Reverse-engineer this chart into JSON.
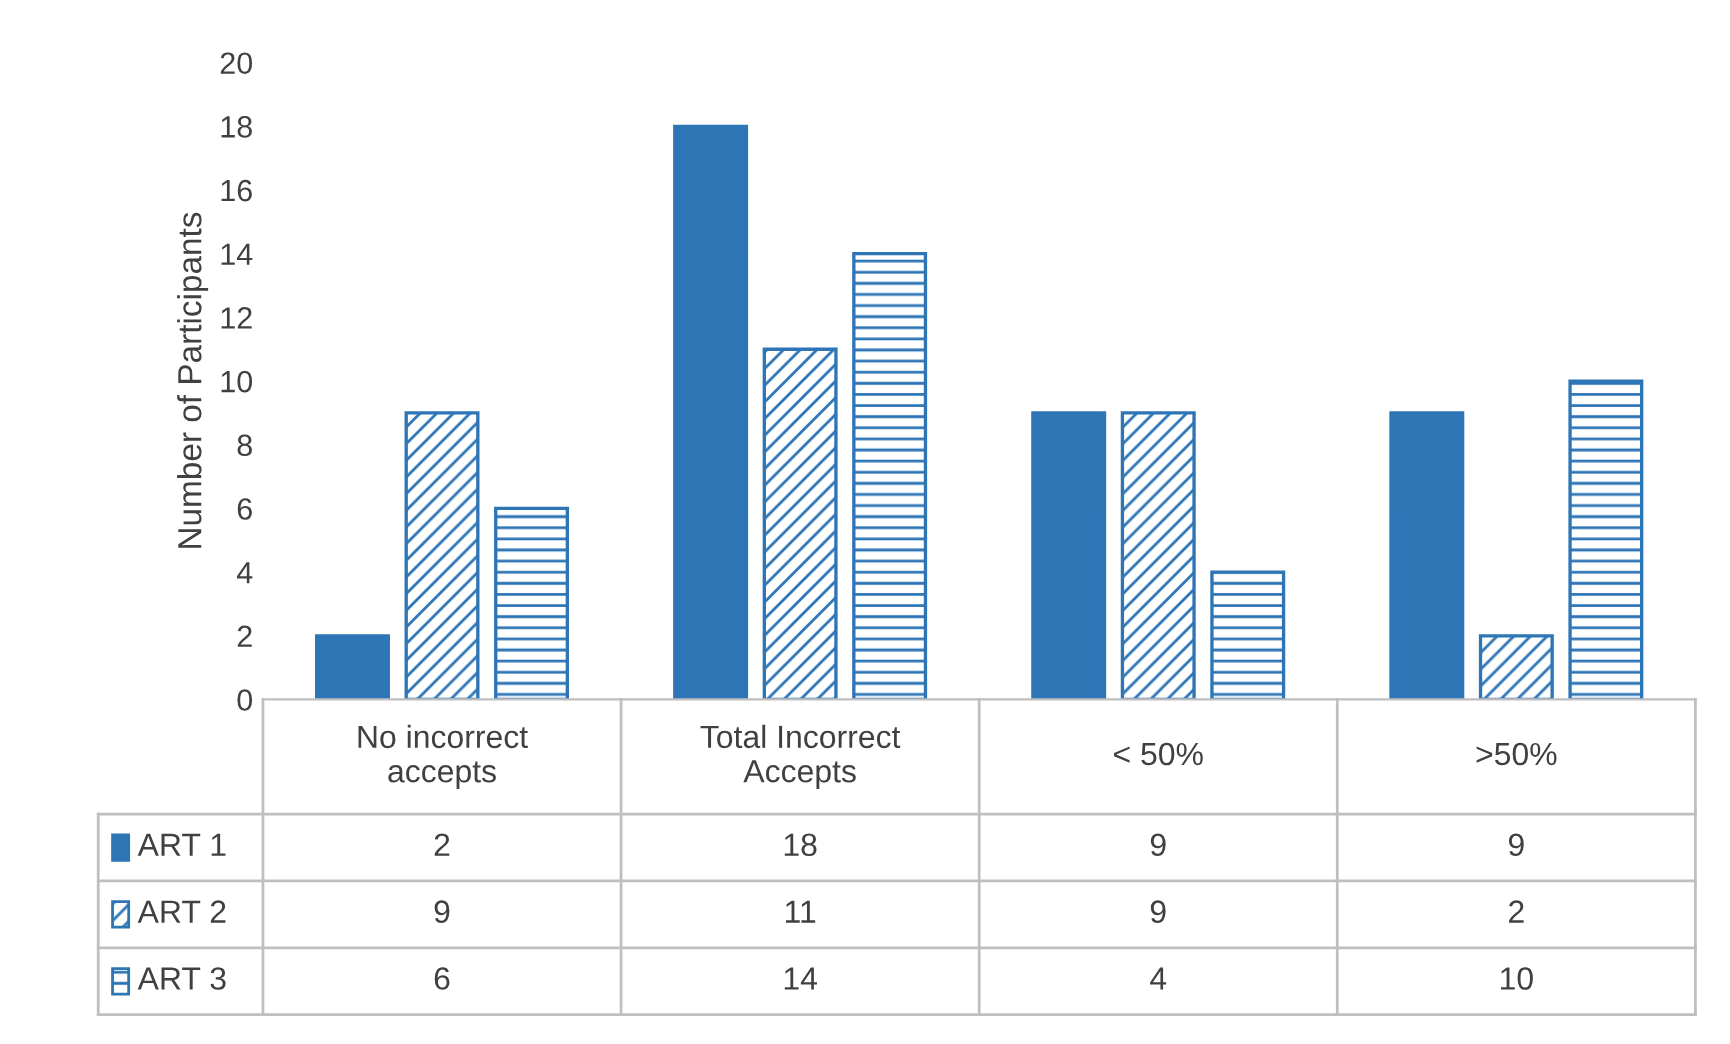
{
  "chart_data": {
    "type": "bar",
    "ylabel": "Number of Participants",
    "categories": [
      "No incorrect\naccepts",
      "Total Incorrect\nAccepts",
      "< 50%",
      ">50%"
    ],
    "series": [
      {
        "name": "ART 1",
        "color": "#2e75b6",
        "values": [
          2,
          18,
          9,
          9
        ]
      },
      {
        "name": "ART 2",
        "color": "#2e75b6",
        "values": [
          9,
          11,
          9,
          2
        ]
      },
      {
        "name": "ART 3",
        "color": "#2e75b6",
        "values": [
          6,
          14,
          4,
          10
        ]
      }
    ],
    "ylim": [
      0,
      20
    ],
    "yticks": [
      0,
      2,
      4,
      6,
      8,
      10,
      12,
      14,
      16,
      18,
      20
    ],
    "grid": false,
    "legend": "bottom",
    "data_labels": true
  }
}
